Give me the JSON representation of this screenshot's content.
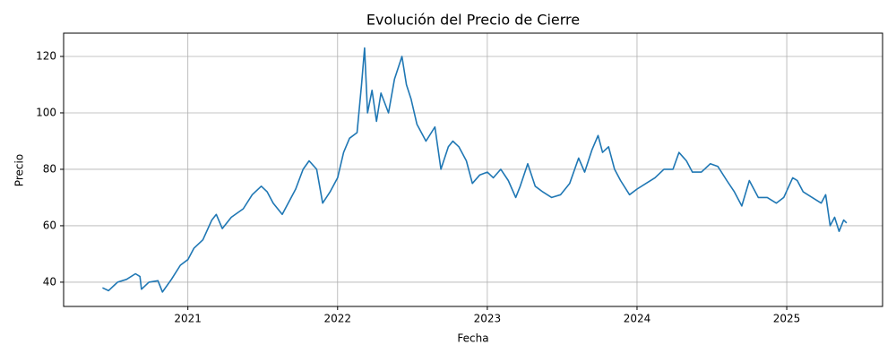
{
  "chart_data": {
    "type": "line",
    "title": "Evolución del Precio de Cierre",
    "x_label": "Fecha",
    "y_label": "Precio",
    "x": [
      2020.43,
      2020.47,
      2020.53,
      2020.59,
      2020.65,
      2020.68,
      2020.69,
      2020.74,
      2020.8,
      2020.83,
      2020.89,
      2020.95,
      2021.0,
      2021.04,
      2021.1,
      2021.16,
      2021.19,
      2021.23,
      2021.29,
      2021.37,
      2021.43,
      2021.49,
      2021.53,
      2021.57,
      2021.63,
      2021.68,
      2021.72,
      2021.77,
      2021.81,
      2021.86,
      2021.9,
      2021.95,
      2022.0,
      2022.04,
      2022.08,
      2022.13,
      2022.16,
      2022.18,
      2022.2,
      2022.23,
      2022.26,
      2022.29,
      2022.34,
      2022.38,
      2022.43,
      2022.46,
      2022.49,
      2022.53,
      2022.59,
      2022.65,
      2022.69,
      2022.74,
      2022.77,
      2022.81,
      2022.86,
      2022.9,
      2022.95,
      2023.0,
      2023.04,
      2023.09,
      2023.14,
      2023.19,
      2023.22,
      2023.27,
      2023.32,
      2023.37,
      2023.43,
      2023.49,
      2023.55,
      2023.61,
      2023.65,
      2023.7,
      2023.74,
      2023.77,
      2023.81,
      2023.85,
      2023.89,
      2023.95,
      2024.0,
      2024.06,
      2024.12,
      2024.18,
      2024.24,
      2024.28,
      2024.33,
      2024.37,
      2024.43,
      2024.49,
      2024.54,
      2024.6,
      2024.65,
      2024.7,
      2024.75,
      2024.81,
      2024.87,
      2024.93,
      2024.98,
      2025.04,
      2025.07,
      2025.11,
      2025.17,
      2025.23,
      2025.26,
      2025.29,
      2025.32,
      2025.35,
      2025.38,
      2025.4
    ],
    "series": [
      {
        "name": "Precio",
        "color": "#1f77b4",
        "values": [
          38,
          37,
          40,
          41,
          43,
          42,
          37.5,
          40,
          40.5,
          36.5,
          41,
          46,
          48,
          52,
          55,
          62,
          64,
          59,
          63,
          66,
          71,
          74,
          72,
          68,
          64,
          69,
          73,
          80,
          83,
          80,
          68,
          72,
          77,
          86,
          91,
          93,
          110,
          123,
          100,
          108,
          97,
          107,
          100,
          112,
          120,
          110,
          105,
          96,
          90,
          95,
          80,
          88,
          90,
          88,
          83,
          75,
          78,
          79,
          77,
          80,
          76,
          70,
          74,
          82,
          74,
          72,
          70,
          71,
          75,
          84,
          79,
          87,
          92,
          86,
          88,
          80,
          76,
          71,
          73,
          75,
          77,
          80,
          80,
          86,
          83,
          79,
          79,
          82,
          81,
          76,
          72,
          67,
          76,
          70,
          70,
          68,
          70,
          77,
          76,
          72,
          70,
          68,
          71,
          60,
          63,
          58,
          62,
          61
        ]
      }
    ],
    "xlim": [
      2020.17,
      2025.64
    ],
    "xticks": [
      2021,
      2022,
      2023,
      2024,
      2025
    ],
    "ylim": [
      31.4,
      128.25
    ],
    "yticks": [
      40,
      60,
      80,
      100,
      120
    ],
    "grid": true
  }
}
